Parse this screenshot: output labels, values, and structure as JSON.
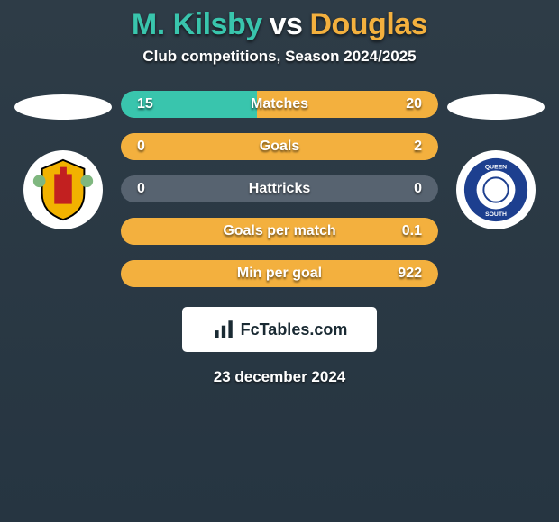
{
  "header": {
    "player1_name": "M. Kilsby",
    "player1_color": "#39c5ad",
    "vs_text": "vs",
    "vs_color": "#ffffff",
    "player2_name": "Douglas",
    "player2_color": "#f3b03e",
    "title_fontsize": 34,
    "subtitle": "Club competitions, Season 2024/2025",
    "subtitle_fontsize": 17
  },
  "colors": {
    "background": "#2a3843",
    "left_series": "#39c5ad",
    "right_series": "#f3b03e",
    "neutral_bar": "#576370",
    "text": "#ffffff"
  },
  "stats": [
    {
      "label": "Matches",
      "left_value": "15",
      "right_value": "20",
      "left_pct": 43,
      "right_pct": 57,
      "left_color": "#39c5ad",
      "right_color": "#f3b03e",
      "bg_color": "#576370"
    },
    {
      "label": "Goals",
      "left_value": "0",
      "right_value": "2",
      "left_pct": 0,
      "right_pct": 100,
      "left_color": "#39c5ad",
      "right_color": "#f3b03e",
      "bg_color": "#576370"
    },
    {
      "label": "Hattricks",
      "left_value": "0",
      "right_value": "0",
      "left_pct": 0,
      "right_pct": 0,
      "left_color": "#39c5ad",
      "right_color": "#f3b03e",
      "bg_color": "#576370"
    },
    {
      "label": "Goals per match",
      "left_value": "",
      "right_value": "0.1",
      "left_pct": 0,
      "right_pct": 100,
      "left_color": "#39c5ad",
      "right_color": "#f3b03e",
      "bg_color": "#576370"
    },
    {
      "label": "Min per goal",
      "left_value": "",
      "right_value": "922",
      "left_pct": 0,
      "right_pct": 100,
      "left_color": "#39c5ad",
      "right_color": "#f3b03e",
      "bg_color": "#576370"
    }
  ],
  "bar_style": {
    "height": 30,
    "border_radius": 15,
    "gap": 17,
    "value_fontsize": 16,
    "label_fontsize": 16
  },
  "footer": {
    "logo_text": "FcTables.com",
    "date_text": "23 december 2024"
  },
  "crests": {
    "left": {
      "name": "Annan Athletic",
      "bg": "#ffffff",
      "badge_primary": "#f2b200",
      "badge_accent": "#c22020"
    },
    "right": {
      "name": "Queen of the South",
      "bg": "#ffffff",
      "ring_color": "#1d3f8f",
      "ring_text_color": "#ffffff"
    }
  }
}
